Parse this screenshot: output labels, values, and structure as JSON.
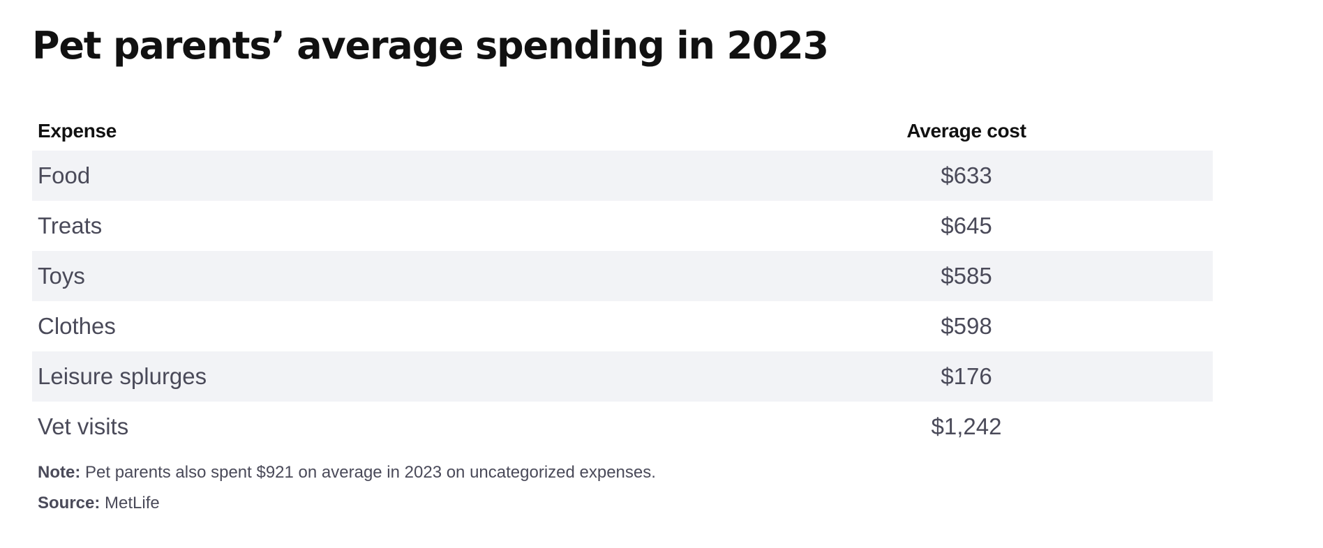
{
  "chart_data": {
    "type": "table",
    "title": "Pet parents’ average spending in 2023",
    "columns": [
      "Expense",
      "Average cost"
    ],
    "rows": [
      {
        "expense": "Food",
        "cost": "$633",
        "value": 633
      },
      {
        "expense": "Treats",
        "cost": "$645",
        "value": 645
      },
      {
        "expense": "Toys",
        "cost": "$585",
        "value": 585
      },
      {
        "expense": "Clothes",
        "cost": "$598",
        "value": 598
      },
      {
        "expense": "Leisure splurges",
        "cost": "$176",
        "value": 176
      },
      {
        "expense": "Vet visits",
        "cost": "$1,242",
        "value": 1242
      }
    ]
  },
  "note": {
    "label": "Note:",
    "text": "Pet parents also spent $921 on average in 2023 on uncategorized expenses."
  },
  "source": {
    "label": "Source:",
    "text": "MetLife"
  },
  "colors": {
    "title": "#111111",
    "body_text": "#4a4a59",
    "row_stripe": "#f2f3f6"
  }
}
